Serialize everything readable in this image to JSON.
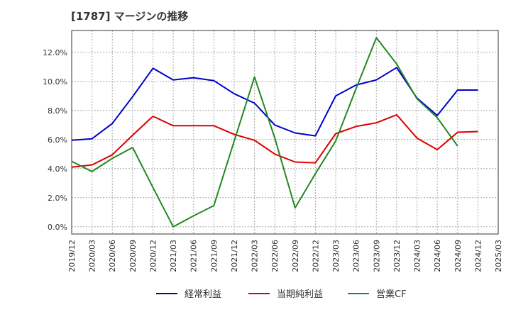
{
  "chart_data": {
    "type": "line",
    "title": "[1787]  マージンの推移",
    "xlabel": "",
    "ylabel": "",
    "x": [
      "2019/12",
      "2020/03",
      "2020/06",
      "2020/09",
      "2020/12",
      "2021/03",
      "2021/06",
      "2021/09",
      "2021/12",
      "2022/03",
      "2022/06",
      "2022/09",
      "2022/12",
      "2023/03",
      "2023/06",
      "2023/09",
      "2023/12",
      "2024/03",
      "2024/06",
      "2024/09",
      "2024/12",
      "2025/03"
    ],
    "ylim": [
      -0.5,
      13.5
    ],
    "yticks": [
      0,
      2,
      4,
      6,
      8,
      10,
      12
    ],
    "ytick_labels": [
      "0.0%",
      "2.0%",
      "4.0%",
      "6.0%",
      "8.0%",
      "10.0%",
      "12.0%"
    ],
    "grid": true,
    "legend_position": "bottom",
    "series": [
      {
        "name": "経常利益",
        "color": "#0000cc",
        "values": [
          5.95,
          6.05,
          7.1,
          8.95,
          10.9,
          10.1,
          10.25,
          10.05,
          9.15,
          8.5,
          7.0,
          6.45,
          6.25,
          9.0,
          9.75,
          10.1,
          10.95,
          8.85,
          7.65,
          9.4,
          9.4,
          null
        ]
      },
      {
        "name": "当期純利益",
        "color": "#dd0000",
        "values": [
          4.1,
          4.25,
          4.95,
          6.3,
          7.6,
          6.95,
          6.95,
          6.95,
          6.35,
          5.95,
          5.0,
          4.45,
          4.4,
          6.4,
          6.9,
          7.15,
          7.7,
          6.1,
          5.3,
          6.5,
          6.55,
          null
        ]
      },
      {
        "name": "営業CF",
        "color": "#228822",
        "values": [
          4.5,
          3.8,
          4.7,
          5.45,
          2.7,
          0.0,
          0.75,
          1.45,
          5.9,
          10.3,
          6.1,
          1.3,
          3.65,
          5.9,
          9.5,
          13.0,
          11.2,
          8.8,
          7.5,
          5.55,
          null,
          null
        ]
      }
    ]
  }
}
